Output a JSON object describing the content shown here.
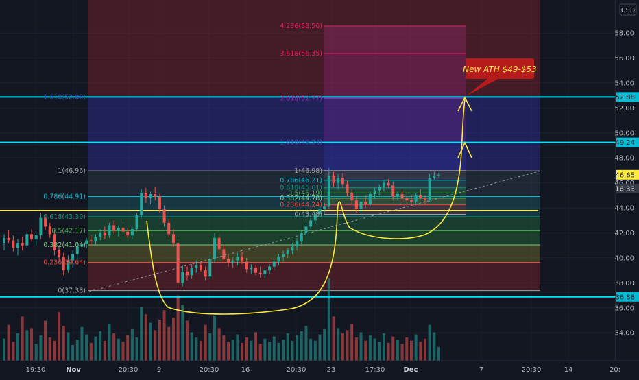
{
  "chart_data": {
    "type": "candlestick",
    "title": "",
    "currency_label": "USD",
    "ylim": [
      32.2,
      60.2
    ],
    "y_ticks": [
      34,
      36,
      38,
      40,
      42,
      44,
      46,
      48,
      50,
      52,
      54,
      56,
      58
    ],
    "y_tick_labels": [
      "34.00",
      "36.00",
      "38.00",
      "40.00",
      "42.00",
      "44.00",
      "46.00",
      "48.00",
      "50.00",
      "52.00",
      "54.00",
      "56.00",
      "58.00"
    ],
    "x_tick_labels": [
      "19:30",
      "Nov",
      "20:30",
      "9",
      "20:30",
      "16",
      "20:30",
      "23",
      "17:30",
      "Dec",
      "7",
      "20:30",
      "14",
      "20:"
    ],
    "bold_x_ticks": [
      "Nov",
      "Dec"
    ],
    "price_tags": [
      {
        "label": "52.88",
        "value": 52.88,
        "color": "#00bcd4",
        "text_color": "#131722"
      },
      {
        "label": "49.24",
        "value": 49.24,
        "color": "#00bcd4",
        "text_color": "#131722"
      },
      {
        "label": "46.65",
        "value": 46.65,
        "color": "#ffeb3b",
        "text_color": "#131722"
      },
      {
        "label": "16:33",
        "value": 45.55,
        "color": "#363a45",
        "text_color": "#d1d4dc"
      },
      {
        "label": "36.88",
        "value": 36.88,
        "color": "#00bcd4",
        "text_color": "#131722"
      }
    ],
    "horizontal_lines": [
      {
        "value": 52.88,
        "color": "#00e5ff"
      },
      {
        "value": 49.24,
        "color": "#00e5ff"
      },
      {
        "value": 36.88,
        "color": "#00e5ff"
      },
      {
        "value": 43.8,
        "color": "#ffeb3b"
      }
    ],
    "fib_retracement_1": {
      "levels": [
        {
          "label": "0(37.38)",
          "value": 37.38
        },
        {
          "label": "0.236(39.64)",
          "value": 39.64
        },
        {
          "label": "0.382(41.04)",
          "value": 41.04
        },
        {
          "label": "0.5(42.17)",
          "value": 42.17
        },
        {
          "label": "0.618(43.30)",
          "value": 43.3
        },
        {
          "label": "0.786(44.91)",
          "value": 44.91
        },
        {
          "label": "1(46.96)",
          "value": 46.96
        },
        {
          "label": "1.618(52.88)",
          "value": 52.88
        }
      ]
    },
    "fib_retracement_2": {
      "levels": [
        {
          "label": "0(43.48)",
          "value": 43.48
        },
        {
          "label": "0.236(44.24)",
          "value": 44.24
        },
        {
          "label": "0.382(44.78)",
          "value": 44.78
        },
        {
          "label": "0.5(45.19)",
          "value": 45.19
        },
        {
          "label": "0.618(45.61)",
          "value": 45.61
        },
        {
          "label": "0.786(46.21)",
          "value": 46.21
        },
        {
          "label": "1(46.98)",
          "value": 46.98
        },
        {
          "label": "1.618(49.24)",
          "value": 49.24
        },
        {
          "label": "2.618(52.77)",
          "value": 52.77
        },
        {
          "label": "3.618(56.35)",
          "value": 56.35
        },
        {
          "label": "4.236(58.56)",
          "value": 58.56
        }
      ]
    },
    "annotation": {
      "text": "New ATH $49-$53"
    },
    "candles": [
      [
        41.2,
        41.9,
        40.6,
        41.6
      ],
      [
        41.6,
        42.2,
        41.2,
        41.4
      ],
      [
        41.4,
        41.8,
        40.5,
        40.8
      ],
      [
        40.8,
        41.5,
        40.2,
        41.2
      ],
      [
        41.2,
        41.7,
        40.6,
        41.0
      ],
      [
        41.0,
        42.1,
        40.8,
        41.9
      ],
      [
        41.9,
        42.3,
        41.3,
        41.5
      ],
      [
        41.5,
        42.0,
        41.0,
        41.8
      ],
      [
        41.8,
        43.6,
        41.5,
        43.2
      ],
      [
        43.2,
        43.5,
        42.2,
        42.5
      ],
      [
        42.5,
        42.8,
        41.6,
        41.9
      ],
      [
        41.9,
        42.2,
        40.2,
        40.6
      ],
      [
        40.6,
        41.0,
        39.8,
        40.1
      ],
      [
        40.1,
        40.4,
        38.6,
        39.0
      ],
      [
        39.0,
        40.2,
        38.8,
        39.8
      ],
      [
        39.8,
        40.6,
        39.2,
        40.3
      ],
      [
        40.3,
        41.2,
        39.9,
        40.9
      ],
      [
        40.9,
        41.5,
        40.5,
        41.1
      ],
      [
        41.1,
        41.6,
        40.8,
        41.4
      ],
      [
        41.4,
        41.8,
        41.0,
        41.3
      ],
      [
        41.3,
        41.9,
        41.0,
        41.7
      ],
      [
        41.7,
        42.3,
        41.4,
        42.0
      ],
      [
        42.0,
        42.5,
        41.5,
        41.8
      ],
      [
        41.8,
        42.8,
        41.6,
        42.6
      ],
      [
        42.6,
        43.0,
        41.9,
        42.2
      ],
      [
        42.2,
        42.6,
        41.7,
        42.4
      ],
      [
        42.4,
        42.9,
        42.0,
        42.1
      ],
      [
        42.1,
        42.4,
        41.6,
        41.8
      ],
      [
        41.8,
        42.5,
        41.5,
        42.3
      ],
      [
        42.3,
        43.6,
        42.1,
        43.4
      ],
      [
        43.4,
        45.5,
        43.2,
        45.2
      ],
      [
        45.2,
        45.6,
        44.4,
        44.8
      ],
      [
        44.8,
        45.3,
        44.3,
        45.1
      ],
      [
        45.1,
        45.7,
        44.6,
        44.9
      ],
      [
        44.9,
        45.1,
        43.6,
        43.9
      ],
      [
        43.9,
        44.2,
        42.5,
        42.8
      ],
      [
        42.8,
        43.1,
        41.6,
        41.9
      ],
      [
        41.9,
        42.3,
        40.9,
        41.2
      ],
      [
        41.2,
        41.5,
        37.6,
        38.0
      ],
      [
        38.0,
        39.4,
        37.7,
        38.9
      ],
      [
        38.9,
        39.3,
        38.2,
        38.6
      ],
      [
        38.6,
        39.5,
        38.3,
        39.2
      ],
      [
        39.2,
        39.8,
        38.8,
        39.4
      ],
      [
        39.4,
        39.7,
        38.9,
        39.0
      ],
      [
        39.0,
        39.3,
        38.2,
        38.5
      ],
      [
        38.5,
        40.2,
        38.3,
        39.9
      ],
      [
        39.9,
        42.0,
        39.6,
        41.6
      ],
      [
        41.6,
        41.9,
        40.4,
        40.7
      ],
      [
        40.7,
        41.0,
        39.6,
        39.9
      ],
      [
        39.9,
        40.3,
        39.3,
        39.6
      ],
      [
        39.6,
        40.1,
        39.2,
        39.8
      ],
      [
        39.8,
        40.4,
        39.4,
        40.1
      ],
      [
        40.1,
        40.5,
        39.5,
        39.7
      ],
      [
        39.7,
        40.0,
        38.8,
        39.1
      ],
      [
        39.1,
        39.5,
        38.7,
        39.2
      ],
      [
        39.2,
        39.4,
        38.6,
        38.8
      ],
      [
        38.8,
        39.3,
        38.4,
        38.7
      ],
      [
        38.7,
        39.2,
        38.4,
        39.0
      ],
      [
        39.0,
        39.5,
        38.7,
        39.3
      ],
      [
        39.3,
        39.9,
        39.0,
        39.7
      ],
      [
        39.7,
        40.3,
        39.4,
        40.1
      ],
      [
        40.1,
        40.6,
        39.7,
        40.3
      ],
      [
        40.3,
        40.8,
        40.0,
        40.6
      ],
      [
        40.6,
        41.2,
        40.3,
        40.9
      ],
      [
        40.9,
        41.6,
        40.6,
        41.3
      ],
      [
        41.3,
        42.2,
        41.1,
        42.0
      ],
      [
        42.0,
        42.7,
        41.8,
        42.5
      ],
      [
        42.5,
        43.2,
        42.3,
        43.0
      ],
      [
        43.0,
        43.7,
        42.7,
        43.5
      ],
      [
        43.5,
        44.1,
        43.2,
        43.9
      ],
      [
        43.9,
        44.4,
        43.5,
        44.1
      ],
      [
        44.1,
        47.2,
        43.9,
        46.6
      ],
      [
        46.6,
        46.9,
        45.7,
        46.0
      ],
      [
        46.0,
        46.7,
        45.5,
        46.4
      ],
      [
        46.4,
        46.8,
        45.6,
        45.9
      ],
      [
        45.9,
        46.2,
        44.9,
        45.2
      ],
      [
        45.2,
        45.5,
        44.3,
        44.6
      ],
      [
        44.6,
        44.9,
        43.6,
        43.9
      ],
      [
        43.9,
        44.8,
        43.6,
        44.5
      ],
      [
        44.5,
        45.0,
        44.0,
        44.3
      ],
      [
        44.3,
        45.3,
        44.1,
        45.1
      ],
      [
        45.1,
        45.6,
        44.7,
        45.4
      ],
      [
        45.4,
        45.9,
        45.0,
        45.7
      ],
      [
        45.7,
        46.2,
        45.3,
        46.0
      ],
      [
        46.0,
        46.3,
        45.6,
        45.8
      ],
      [
        45.8,
        46.1,
        44.6,
        44.9
      ],
      [
        44.9,
        45.3,
        44.6,
        45.1
      ],
      [
        45.1,
        45.4,
        44.5,
        44.8
      ],
      [
        44.8,
        45.2,
        44.3,
        44.6
      ],
      [
        44.6,
        45.0,
        44.2,
        44.5
      ],
      [
        44.5,
        45.2,
        44.3,
        45.0
      ],
      [
        45.0,
        45.5,
        44.7,
        44.8
      ],
      [
        44.8,
        45.0,
        44.3,
        44.6
      ],
      [
        44.6,
        46.7,
        44.5,
        46.4
      ],
      [
        46.4,
        46.9,
        46.2,
        46.6
      ],
      [
        46.6,
        46.8,
        46.4,
        46.65
      ]
    ],
    "volumes": [
      2.1,
      3.4,
      1.8,
      2.6,
      4.2,
      2.9,
      3.1,
      1.6,
      2.4,
      3.8,
      2.2,
      1.9,
      4.6,
      3.3,
      2.7,
      1.5,
      2.0,
      3.2,
      2.5,
      1.7,
      2.3,
      2.8,
      1.9,
      3.5,
      2.6,
      2.1,
      1.8,
      2.4,
      3.0,
      2.2,
      5.1,
      4.4,
      3.6,
      2.9,
      3.9,
      4.8,
      3.2,
      4.1,
      6.2,
      5.3,
      3.8,
      2.7,
      2.2,
      1.9,
      3.4,
      2.6,
      4.3,
      3.1,
      2.4,
      1.8,
      2.0,
      2.5,
      1.7,
      2.2,
      1.9,
      2.7,
      1.6,
      2.1,
      1.8,
      2.3,
      1.7,
      2.0,
      2.6,
      1.9,
      2.4,
      2.8,
      3.3,
      2.1,
      1.9,
      2.5,
      3.0,
      7.8,
      4.2,
      3.1,
      2.6,
      2.9,
      3.5,
      2.2,
      2.7,
      1.9,
      2.4,
      2.1,
      1.8,
      2.6,
      1.7,
      2.3,
      2.0,
      1.6,
      2.2,
      1.9,
      2.5,
      1.8,
      2.1,
      3.4,
      2.7,
      1.3
    ]
  }
}
